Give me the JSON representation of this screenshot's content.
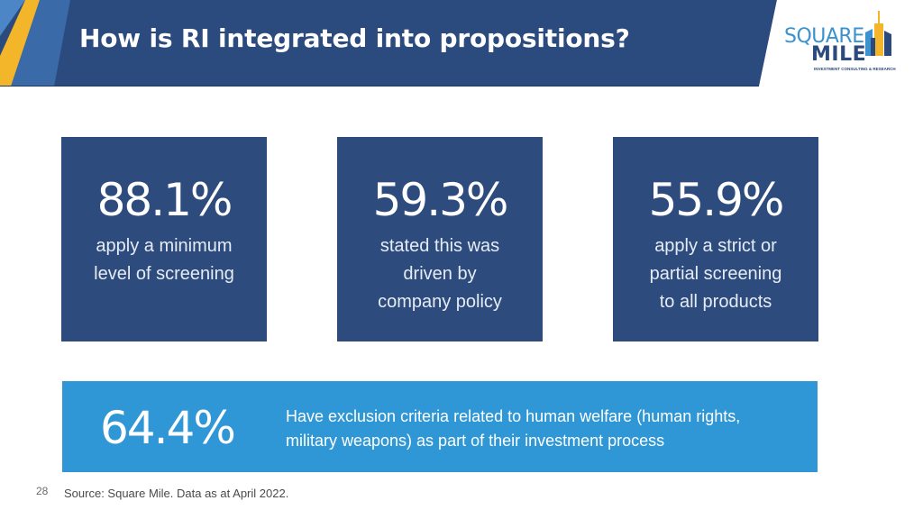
{
  "header": {
    "title": "How is RI integrated into propositions?",
    "colors": {
      "banner": "#2b4a7e",
      "accent_gold": "#f3b52a",
      "accent_blue": "#3a92cf"
    }
  },
  "logo": {
    "line1": "SQUARE",
    "line2": "MILE",
    "tagline": "INVESTMENT CONSULTING & RESEARCH",
    "icon": "city-buildings-icon"
  },
  "stats": [
    {
      "value": "88.1%",
      "description": "apply a minimum\nlevel of screening"
    },
    {
      "value": "59.3%",
      "description": "stated this was\ndriven by\ncompany policy"
    },
    {
      "value": "55.9%",
      "description": "apply a strict or\npartial screening\nto all products"
    }
  ],
  "highlight": {
    "value": "64.4%",
    "description": "Have exclusion criteria related to human welfare (human rights, military weapons) as part of their investment process"
  },
  "footer": {
    "page_number": "28",
    "source": "Source: Square Mile. Data as at April 2022."
  }
}
